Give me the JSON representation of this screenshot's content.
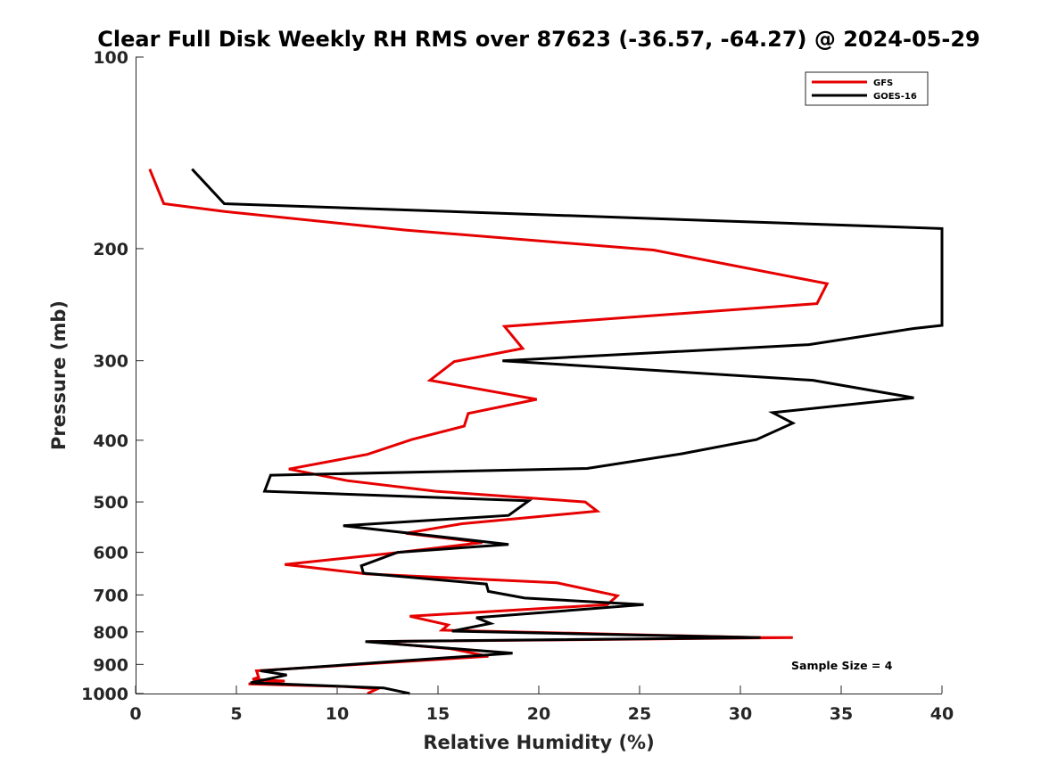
{
  "chart_data": {
    "type": "line",
    "title": "Clear Full Disk Weekly RH RMS over 87623 (-36.57, -64.27) @ 2024-05-29",
    "xlabel": "Relative Humidity (%)",
    "ylabel": "Pressure (mb)",
    "xlim": [
      0,
      40
    ],
    "ylim": [
      100,
      1000
    ],
    "y_scale": "log",
    "y_reversed": true,
    "x_ticks": [
      "0",
      "5",
      "10",
      "15",
      "20",
      "25",
      "30",
      "35",
      "40"
    ],
    "y_ticks": [
      "100",
      "200",
      "300",
      "400",
      "500",
      "600",
      "700",
      "800",
      "900",
      "1000"
    ],
    "grid": false,
    "legend_position": "top-right",
    "annotation": "Sample Size = 4",
    "series": [
      {
        "name": "GFS",
        "color": "#e60000",
        "points": [
          [
            0.7,
            150
          ],
          [
            1.4,
            170
          ],
          [
            4.5,
            175
          ],
          [
            13.4,
            187
          ],
          [
            25.7,
            201
          ],
          [
            34.3,
            227
          ],
          [
            33.8,
            244
          ],
          [
            18.3,
            265
          ],
          [
            19.2,
            287
          ],
          [
            15.8,
            301
          ],
          [
            14.6,
            322
          ],
          [
            19.9,
            345
          ],
          [
            16.5,
            363
          ],
          [
            16.3,
            380
          ],
          [
            13.7,
            399
          ],
          [
            11.5,
            421
          ],
          [
            7.6,
            444
          ],
          [
            10.5,
            463
          ],
          [
            14.9,
            481
          ],
          [
            22.3,
            500
          ],
          [
            22.9,
            517
          ],
          [
            16.2,
            541
          ],
          [
            13.4,
            560
          ],
          [
            17.2,
            579
          ],
          [
            12.7,
            602
          ],
          [
            7.4,
            627
          ],
          [
            11.5,
            649
          ],
          [
            20.9,
            670
          ],
          [
            23.9,
            702
          ],
          [
            23.4,
            725
          ],
          [
            13.6,
            756
          ],
          [
            15.5,
            780
          ],
          [
            15.2,
            795
          ],
          [
            31.0,
            817
          ],
          [
            32.6,
            817
          ],
          [
            11.6,
            829
          ],
          [
            15.6,
            850
          ],
          [
            17.5,
            874
          ],
          [
            6.0,
            921
          ],
          [
            6.1,
            943
          ],
          [
            5.8,
            950
          ],
          [
            7.4,
            956
          ],
          [
            5.6,
            966
          ],
          [
            10.4,
            975
          ],
          [
            12.0,
            983
          ],
          [
            11.5,
            1000
          ]
        ]
      },
      {
        "name": "GOES-16",
        "color": "#000000",
        "points": [
          [
            2.8,
            150
          ],
          [
            4.4,
            170
          ],
          [
            40.0,
            186
          ],
          [
            40.0,
            264
          ],
          [
            38.6,
            267
          ],
          [
            33.4,
            283
          ],
          [
            18.2,
            300
          ],
          [
            33.6,
            322
          ],
          [
            38.6,
            343
          ],
          [
            31.6,
            362
          ],
          [
            32.6,
            376
          ],
          [
            30.8,
            399
          ],
          [
            27.1,
            420
          ],
          [
            22.4,
            443
          ],
          [
            6.7,
            454
          ],
          [
            6.4,
            481
          ],
          [
            19.5,
            498
          ],
          [
            18.5,
            525
          ],
          [
            10.3,
            545
          ],
          [
            18.5,
            583
          ],
          [
            13.0,
            600
          ],
          [
            11.2,
            630
          ],
          [
            11.3,
            647
          ],
          [
            17.4,
            673
          ],
          [
            17.5,
            691
          ],
          [
            19.3,
            708
          ],
          [
            25.2,
            725
          ],
          [
            16.9,
            760
          ],
          [
            17.6,
            776
          ],
          [
            15.7,
            798
          ],
          [
            31.0,
            817
          ],
          [
            11.4,
            829
          ],
          [
            18.7,
            864
          ],
          [
            6.2,
            921
          ],
          [
            7.5,
            935
          ],
          [
            5.7,
            962
          ],
          [
            12.3,
            980
          ],
          [
            13.6,
            1000
          ]
        ]
      }
    ]
  }
}
